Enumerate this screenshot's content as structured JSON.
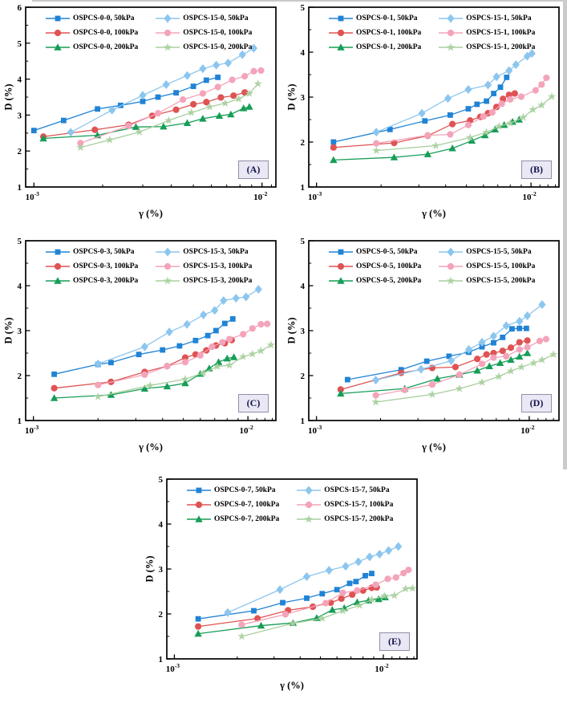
{
  "figure": {
    "xlabel": "γ (%)",
    "ylabel": "D (%)",
    "xtick_labels": [
      {
        "value": 0.001,
        "base": "10",
        "exp": "-3"
      },
      {
        "value": 0.01,
        "base": "10",
        "exp": "-2"
      }
    ],
    "panel_label_style": {
      "bg": "#e9e8f4",
      "border": "#8f90a6",
      "text": "#14144d"
    },
    "series_styles": [
      {
        "marker": "square",
        "color": "#2083d5"
      },
      {
        "marker": "circle",
        "color": "#df5353"
      },
      {
        "marker": "triangle",
        "color": "#179d57"
      },
      {
        "marker": "diamond",
        "color": "#8cc6ee"
      },
      {
        "marker": "circle",
        "color": "#f3a4ba"
      },
      {
        "marker": "star",
        "color": "#a9cf9e"
      }
    ]
  },
  "chart_data": [
    {
      "panel_label": "(A)",
      "type": "line",
      "xscale": "log",
      "xlabel": "γ (%)",
      "ylabel": "D (%)",
      "xlim": [
        0.00092,
        0.0115
      ],
      "ylim": [
        1,
        6
      ],
      "yticks": [
        1,
        2,
        3,
        4,
        5,
        6
      ],
      "series": [
        {
          "name": "OSPCS-0-0, 50kPa",
          "x": [
            0.001,
            0.00135,
            0.0019,
            0.0024,
            0.003,
            0.0035,
            0.0042,
            0.005,
            0.0057,
            0.0064
          ],
          "y": [
            2.57,
            2.85,
            3.17,
            3.27,
            3.38,
            3.5,
            3.62,
            3.8,
            3.97,
            4.05
          ]
        },
        {
          "name": "OSPCS-0-0, 100kPa",
          "x": [
            0.0011,
            0.00185,
            0.0026,
            0.0033,
            0.0042,
            0.005,
            0.0057,
            0.0066,
            0.0075,
            0.0084
          ],
          "y": [
            2.4,
            2.59,
            2.73,
            2.98,
            3.15,
            3.3,
            3.36,
            3.49,
            3.54,
            3.63
          ]
        },
        {
          "name": "OSPCS-0-0, 200kPa",
          "x": [
            0.0011,
            0.0019,
            0.0028,
            0.0037,
            0.0047,
            0.0055,
            0.0065,
            0.0073,
            0.0083,
            0.0088
          ],
          "y": [
            2.35,
            2.44,
            2.67,
            2.68,
            2.78,
            2.9,
            2.98,
            3.02,
            3.19,
            3.23
          ]
        },
        {
          "name": "OSPCS-15-0, 50kPa",
          "x": [
            0.00145,
            0.0022,
            0.003,
            0.0038,
            0.0047,
            0.0055,
            0.0063,
            0.0071,
            0.0082,
            0.0092
          ],
          "y": [
            2.52,
            3.14,
            3.55,
            3.85,
            4.1,
            4.29,
            4.39,
            4.45,
            4.68,
            4.86
          ]
        },
        {
          "name": "OSPCS-15-0, 100kPa",
          "x": [
            0.0016,
            0.0026,
            0.0035,
            0.0045,
            0.0055,
            0.0064,
            0.0074,
            0.0084,
            0.0092,
            0.0099
          ],
          "y": [
            2.22,
            2.7,
            3.05,
            3.43,
            3.6,
            3.78,
            3.98,
            4.08,
            4.22,
            4.24
          ]
        },
        {
          "name": "OSPCS-15-0, 200kPa",
          "x": [
            0.0016,
            0.00215,
            0.0029,
            0.0039,
            0.0049,
            0.0059,
            0.0069,
            0.0079,
            0.0088,
            0.0096
          ],
          "y": [
            2.1,
            2.31,
            2.53,
            2.85,
            3.07,
            3.23,
            3.33,
            3.45,
            3.6,
            3.87
          ]
        }
      ]
    },
    {
      "panel_label": "(B)",
      "type": "line",
      "xscale": "log",
      "xlabel": "γ (%)",
      "ylabel": "D (%)",
      "xlim": [
        0.00092,
        0.0135
      ],
      "ylim": [
        1,
        5
      ],
      "yticks": [
        1,
        2,
        3,
        4,
        5
      ],
      "series": [
        {
          "name": "OSPCS-0-1, 50kPa",
          "x": [
            0.0012,
            0.0022,
            0.0032,
            0.0042,
            0.0051,
            0.0056,
            0.0062,
            0.0067,
            0.0072,
            0.0077
          ],
          "y": [
            2.0,
            2.28,
            2.47,
            2.6,
            2.74,
            2.84,
            2.91,
            3.08,
            3.22,
            3.44
          ]
        },
        {
          "name": "OSPCS-0-1, 100kPa",
          "x": [
            0.0012,
            0.0023,
            0.0033,
            0.0043,
            0.0052,
            0.0058,
            0.0063,
            0.0069,
            0.0074,
            0.0079,
            0.0084
          ],
          "y": [
            1.88,
            1.98,
            2.14,
            2.4,
            2.48,
            2.56,
            2.64,
            2.78,
            2.96,
            3.05,
            3.08
          ]
        },
        {
          "name": "OSPCS-0-1, 200kPa",
          "x": [
            0.0012,
            0.0023,
            0.0033,
            0.0043,
            0.0053,
            0.0061,
            0.0068,
            0.0075,
            0.0082,
            0.0088
          ],
          "y": [
            1.6,
            1.66,
            1.73,
            1.86,
            2.03,
            2.15,
            2.28,
            2.38,
            2.45,
            2.5
          ]
        },
        {
          "name": "OSPCS-15-1, 50kPa",
          "x": [
            0.0019,
            0.0031,
            0.0041,
            0.0051,
            0.0063,
            0.0069,
            0.0079,
            0.0085,
            0.0096,
            0.0101
          ],
          "y": [
            2.22,
            2.64,
            2.97,
            3.17,
            3.27,
            3.45,
            3.59,
            3.72,
            3.91,
            3.97
          ]
        },
        {
          "name": "OSPCS-15-1, 100kPa",
          "x": [
            0.0019,
            0.0033,
            0.0042,
            0.0051,
            0.006,
            0.0066,
            0.0073,
            0.008,
            0.009,
            0.0105,
            0.0112,
            0.0118
          ],
          "y": [
            1.97,
            2.15,
            2.17,
            2.38,
            2.57,
            2.66,
            2.85,
            2.95,
            3.01,
            3.15,
            3.28,
            3.43
          ]
        },
        {
          "name": "OSPCS-15-1, 200kPa",
          "x": [
            0.0019,
            0.0036,
            0.0052,
            0.0062,
            0.0071,
            0.008,
            0.0092,
            0.0102,
            0.0112,
            0.0125
          ],
          "y": [
            1.81,
            1.92,
            2.1,
            2.22,
            2.35,
            2.42,
            2.55,
            2.72,
            2.82,
            3.01
          ]
        }
      ]
    },
    {
      "panel_label": "(C)",
      "type": "line",
      "xscale": "log",
      "xlabel": "γ (%)",
      "ylabel": "D (%)",
      "xlim": [
        0.00092,
        0.0135
      ],
      "ylim": [
        1,
        5
      ],
      "yticks": [
        1,
        2,
        3,
        4,
        5
      ],
      "series": [
        {
          "name": "OSPCS-0-3, 50kPa",
          "x": [
            0.00125,
            0.002,
            0.0023,
            0.0031,
            0.004,
            0.0048,
            0.0057,
            0.0065,
            0.0071,
            0.0078,
            0.0085
          ],
          "y": [
            2.03,
            2.25,
            2.29,
            2.47,
            2.57,
            2.66,
            2.78,
            2.89,
            3.0,
            3.16,
            3.26
          ]
        },
        {
          "name": "OSPCS-0-3, 100kPa",
          "x": [
            0.00125,
            0.0023,
            0.0033,
            0.0042,
            0.0051,
            0.0057,
            0.0064,
            0.0071,
            0.0078,
            0.0084
          ],
          "y": [
            1.72,
            1.86,
            2.08,
            2.21,
            2.4,
            2.47,
            2.56,
            2.67,
            2.72,
            2.79
          ]
        },
        {
          "name": "OSPCS-0-3, 200kPa",
          "x": [
            0.00125,
            0.0023,
            0.0033,
            0.0042,
            0.0051,
            0.006,
            0.0066,
            0.0073,
            0.008,
            0.0086
          ],
          "y": [
            1.5,
            1.57,
            1.71,
            1.76,
            1.83,
            2.04,
            2.16,
            2.3,
            2.38,
            2.41
          ]
        },
        {
          "name": "OSPCS-15-3, 50kPa",
          "x": [
            0.002,
            0.0033,
            0.0043,
            0.0052,
            0.0062,
            0.007,
            0.0077,
            0.0088,
            0.0098,
            0.0112
          ],
          "y": [
            2.26,
            2.64,
            2.97,
            3.14,
            3.35,
            3.45,
            3.67,
            3.72,
            3.75,
            3.92
          ]
        },
        {
          "name": "OSPCS-15-3, 100kPa",
          "x": [
            0.002,
            0.0033,
            0.0042,
            0.0051,
            0.006,
            0.0068,
            0.0076,
            0.0082,
            0.0095,
            0.0105,
            0.0115,
            0.0123
          ],
          "y": [
            1.79,
            2.02,
            2.21,
            2.3,
            2.45,
            2.64,
            2.74,
            2.81,
            2.92,
            3.05,
            3.14,
            3.15
          ]
        },
        {
          "name": "OSPCS-15-3, 200kPa",
          "x": [
            0.002,
            0.0035,
            0.0051,
            0.0062,
            0.0072,
            0.0082,
            0.0095,
            0.0105,
            0.0115,
            0.0128
          ],
          "y": [
            1.53,
            1.78,
            1.92,
            2.06,
            2.2,
            2.23,
            2.42,
            2.48,
            2.55,
            2.68
          ]
        }
      ]
    },
    {
      "panel_label": "(D)",
      "type": "line",
      "xscale": "log",
      "xlabel": "γ (%)",
      "ylabel": "D (%)",
      "xlim": [
        0.00092,
        0.0138
      ],
      "ylim": [
        1,
        5
      ],
      "yticks": [
        1,
        2,
        3,
        4,
        5
      ],
      "series": [
        {
          "name": "OSPCS-0-5, 50kPa",
          "x": [
            0.0014,
            0.0025,
            0.0033,
            0.0042,
            0.0052,
            0.006,
            0.0068,
            0.0075,
            0.0083,
            0.009,
            0.0097
          ],
          "y": [
            1.91,
            2.13,
            2.32,
            2.43,
            2.52,
            2.64,
            2.73,
            2.85,
            3.04,
            3.05,
            3.05
          ]
        },
        {
          "name": "OSPCS-0-5, 100kPa",
          "x": [
            0.0013,
            0.0025,
            0.0035,
            0.0045,
            0.0057,
            0.0063,
            0.0068,
            0.0075,
            0.0082,
            0.009,
            0.0098
          ],
          "y": [
            1.69,
            2.06,
            2.17,
            2.19,
            2.37,
            2.47,
            2.5,
            2.55,
            2.62,
            2.74,
            2.78
          ]
        },
        {
          "name": "OSPCS-0-5, 200kPa",
          "x": [
            0.0013,
            0.0026,
            0.0037,
            0.0047,
            0.0057,
            0.0065,
            0.0073,
            0.0082,
            0.009,
            0.0098
          ],
          "y": [
            1.6,
            1.71,
            1.93,
            2.02,
            2.11,
            2.21,
            2.28,
            2.35,
            2.42,
            2.5
          ]
        },
        {
          "name": "OSPCS-15-5, 50kPa",
          "x": [
            0.0019,
            0.0031,
            0.0043,
            0.0052,
            0.006,
            0.0068,
            0.0078,
            0.009,
            0.0098,
            0.0115
          ],
          "y": [
            1.9,
            2.14,
            2.33,
            2.58,
            2.74,
            2.88,
            3.11,
            3.21,
            3.33,
            3.58
          ]
        },
        {
          "name": "OSPCS-15-5, 100kPa",
          "x": [
            0.0019,
            0.0026,
            0.0035,
            0.0047,
            0.006,
            0.0068,
            0.0078,
            0.009,
            0.0098,
            0.0112,
            0.012
          ],
          "y": [
            1.56,
            1.68,
            1.8,
            2.02,
            2.26,
            2.4,
            2.43,
            2.58,
            2.63,
            2.77,
            2.81
          ]
        },
        {
          "name": "OSPCS-15-5, 200kPa",
          "x": [
            0.0019,
            0.0035,
            0.0047,
            0.006,
            0.0072,
            0.0082,
            0.0092,
            0.0105,
            0.0115,
            0.013
          ],
          "y": [
            1.41,
            1.58,
            1.71,
            1.85,
            1.98,
            2.1,
            2.19,
            2.28,
            2.35,
            2.47
          ]
        }
      ]
    },
    {
      "panel_label": "(E)",
      "type": "line",
      "xscale": "log",
      "xlabel": "γ (%)",
      "ylabel": "D (%)",
      "xlim": [
        0.00092,
        0.0145
      ],
      "ylim": [
        1,
        5
      ],
      "yticks": [
        1,
        2,
        3,
        4,
        5
      ],
      "series": [
        {
          "name": "OSPCS-0-7, 50kPa",
          "x": [
            0.0013,
            0.0024,
            0.0033,
            0.0043,
            0.0051,
            0.006,
            0.0069,
            0.0074,
            0.0082,
            0.0088
          ],
          "y": [
            1.89,
            2.07,
            2.25,
            2.35,
            2.45,
            2.54,
            2.68,
            2.72,
            2.85,
            2.9
          ]
        },
        {
          "name": "OSPCS-0-7, 100kPa",
          "x": [
            0.0013,
            0.0025,
            0.0035,
            0.0046,
            0.0056,
            0.0063,
            0.0071,
            0.008,
            0.0088,
            0.0093
          ],
          "y": [
            1.72,
            1.9,
            2.08,
            2.16,
            2.25,
            2.34,
            2.43,
            2.52,
            2.58,
            2.59
          ]
        },
        {
          "name": "OSPCS-0-7, 200kPa",
          "x": [
            0.0013,
            0.0026,
            0.0037,
            0.0048,
            0.0057,
            0.0065,
            0.0075,
            0.0085,
            0.0095,
            0.0102
          ],
          "y": [
            1.56,
            1.74,
            1.8,
            1.91,
            2.09,
            2.13,
            2.26,
            2.3,
            2.33,
            2.37
          ]
        },
        {
          "name": "OSPCS-15-7, 50kPa",
          "x": [
            0.0018,
            0.0032,
            0.0043,
            0.0055,
            0.0066,
            0.0076,
            0.0086,
            0.0096,
            0.0106,
            0.0118
          ],
          "y": [
            2.03,
            2.54,
            2.83,
            2.97,
            3.06,
            3.16,
            3.27,
            3.33,
            3.41,
            3.5
          ]
        },
        {
          "name": "OSPCS-15-7, 100kPa",
          "x": [
            0.0021,
            0.0034,
            0.0053,
            0.0064,
            0.0075,
            0.0092,
            0.0105,
            0.0115,
            0.0125,
            0.0132
          ],
          "y": [
            1.76,
            1.99,
            2.24,
            2.47,
            2.52,
            2.65,
            2.78,
            2.81,
            2.91,
            2.98
          ]
        },
        {
          "name": "OSPCS-15-7, 200kPa",
          "x": [
            0.0021,
            0.0037,
            0.0051,
            0.0064,
            0.0077,
            0.0088,
            0.0101,
            0.0113,
            0.0128,
            0.0138
          ],
          "y": [
            1.5,
            1.79,
            1.9,
            2.07,
            2.19,
            2.32,
            2.4,
            2.41,
            2.56,
            2.57
          ]
        }
      ]
    }
  ]
}
